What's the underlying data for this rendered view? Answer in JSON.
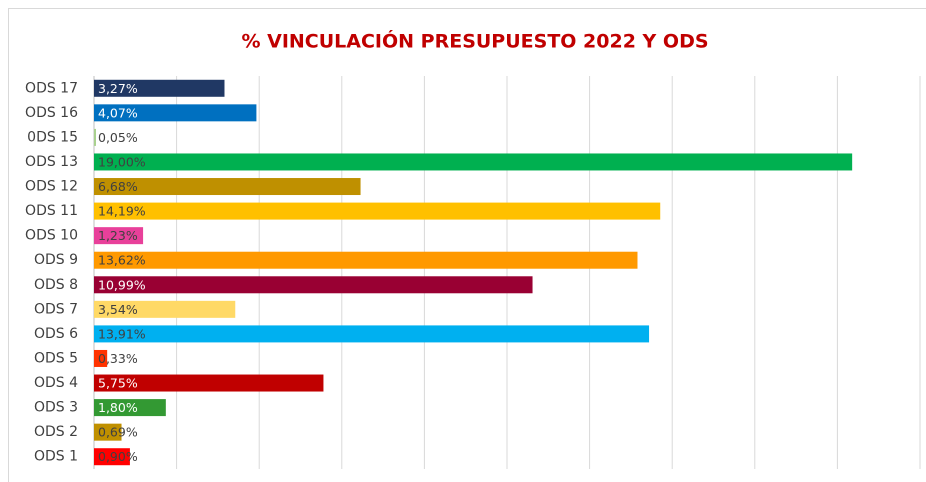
{
  "chart_data": {
    "type": "bar",
    "orientation": "horizontal",
    "title": "% VINCULACIÓN PRESUPUESTO 2022 Y ODS",
    "categories": [
      "ODS 17",
      "ODS 16",
      "0DS 15",
      "ODS 13",
      "ODS 12",
      "ODS 11",
      "ODS 10",
      "ODS 9",
      "ODS 8",
      "ODS 7",
      "ODS 6",
      "ODS 5",
      "ODS 4",
      "ODS 3",
      "ODS 2",
      "ODS 1"
    ],
    "values": [
      3.27,
      4.07,
      0.05,
      19.0,
      6.68,
      14.19,
      1.23,
      13.62,
      10.99,
      3.54,
      13.91,
      0.33,
      5.75,
      1.8,
      0.69,
      0.9
    ],
    "value_labels": [
      "3,27%",
      "4,07%",
      "0,05%",
      "19,00%",
      "6,68%",
      "14,19%",
      "1,23%",
      "13,62%",
      "10,99%",
      "3,54%",
      "13,91%",
      "0,33%",
      "5,75%",
      "1,80%",
      "0,69%",
      "0,90%"
    ],
    "colors": [
      "#203864",
      "#0070c0",
      "#a9d18e",
      "#00b050",
      "#bf9000",
      "#ffc000",
      "#e8409a",
      "#ff9900",
      "#990033",
      "#ffd966",
      "#00b0f0",
      "#ff3300",
      "#c00000",
      "#339933",
      "#c09000",
      "#ff0000"
    ],
    "label_colors": [
      "#ffffff",
      "#ffffff",
      "#404040",
      "#404040",
      "#404040",
      "#404040",
      "#404040",
      "#404040",
      "#ffffff",
      "#404040",
      "#404040",
      "#404040",
      "#ffffff",
      "#ffffff",
      "#404040",
      "#404040"
    ],
    "xlim": [
      0,
      20.7
    ],
    "xticks": [
      0,
      2.07,
      4.14,
      6.21,
      8.28,
      10.35,
      12.42,
      14.49,
      16.56,
      18.63,
      20.7
    ],
    "grid": true
  }
}
